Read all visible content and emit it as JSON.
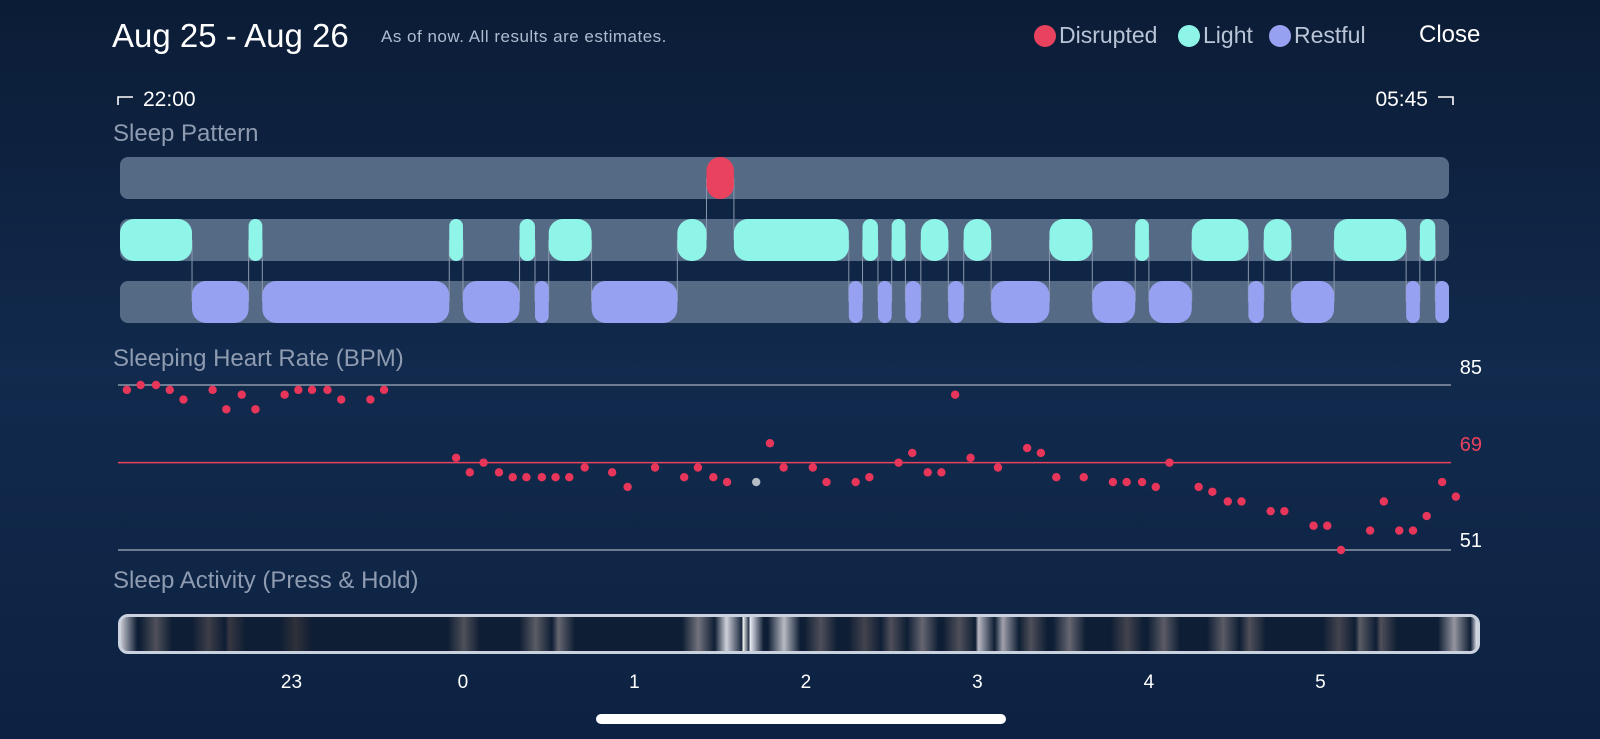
{
  "header": {
    "title": "Aug 25 - Aug 26",
    "subtitle": "As of now. All results are estimates.",
    "close_label": "Close"
  },
  "legend": [
    {
      "label": "Disrupted",
      "color": "#e8425e"
    },
    {
      "label": "Light",
      "color": "#8ff5e8"
    },
    {
      "label": "Restful",
      "color": "#97a1f2"
    }
  ],
  "time_range": {
    "start": "22:00",
    "end": "05:45"
  },
  "sleep_pattern": {
    "title": "Sleep Pattern",
    "track_color": "#556a85",
    "stages": [
      [
        "light",
        22.0,
        22.42
      ],
      [
        "restful",
        22.42,
        22.75
      ],
      [
        "light",
        22.75,
        22.83
      ],
      [
        "restful",
        22.83,
        23.92
      ],
      [
        "light",
        23.92,
        24.0
      ],
      [
        "restful",
        24.0,
        24.33
      ],
      [
        "light",
        24.33,
        24.42
      ],
      [
        "restful",
        24.42,
        24.5
      ],
      [
        "light",
        24.5,
        24.75
      ],
      [
        "restful",
        24.75,
        25.25
      ],
      [
        "light",
        25.25,
        25.42
      ],
      [
        "disrupted",
        25.42,
        25.58
      ],
      [
        "light",
        25.58,
        26.25
      ],
      [
        "restful",
        26.25,
        26.33
      ],
      [
        "light",
        26.33,
        26.42
      ],
      [
        "restful",
        26.42,
        26.5
      ],
      [
        "light",
        26.5,
        26.58
      ],
      [
        "restful",
        26.58,
        26.67
      ],
      [
        "light",
        26.67,
        26.83
      ],
      [
        "restful",
        26.83,
        26.92
      ],
      [
        "light",
        26.92,
        27.08
      ],
      [
        "restful",
        27.08,
        27.42
      ],
      [
        "light",
        27.42,
        27.67
      ],
      [
        "restful",
        27.67,
        27.92
      ],
      [
        "light",
        27.92,
        28.0
      ],
      [
        "restful",
        28.0,
        28.25
      ],
      [
        "light",
        28.25,
        28.58
      ],
      [
        "restful",
        28.58,
        28.67
      ],
      [
        "light",
        28.67,
        28.83
      ],
      [
        "restful",
        28.83,
        29.08
      ],
      [
        "light",
        29.08,
        29.5
      ],
      [
        "restful",
        29.5,
        29.58
      ],
      [
        "light",
        29.58,
        29.67
      ],
      [
        "restful",
        29.67,
        29.75
      ]
    ]
  },
  "heart_rate": {
    "title": "Sleeping Heart Rate (BPM)",
    "max_label": "85",
    "avg_label": "69",
    "min_label": "51",
    "avg_color": "#e8425e",
    "point_color": "#e8365a",
    "gray_point_color": "#b6bcc6"
  },
  "chart_data": {
    "type": "scatter",
    "title": "Sleeping Heart Rate (BPM)",
    "x_unit": "hours (clock)",
    "y_max": 85,
    "y_avg": 69,
    "y_min": 51,
    "xlim": [
      22.0,
      29.75
    ],
    "points": [
      [
        22.04,
        84
      ],
      [
        22.12,
        85
      ],
      [
        22.21,
        85
      ],
      [
        22.29,
        84
      ],
      [
        22.37,
        82
      ],
      [
        22.54,
        84
      ],
      [
        22.62,
        80
      ],
      [
        22.71,
        83
      ],
      [
        22.79,
        80
      ],
      [
        22.96,
        83
      ],
      [
        23.04,
        84
      ],
      [
        23.12,
        84
      ],
      [
        23.21,
        84
      ],
      [
        23.29,
        82
      ],
      [
        23.46,
        82
      ],
      [
        23.54,
        84
      ],
      [
        23.96,
        70
      ],
      [
        24.04,
        67
      ],
      [
        24.12,
        69
      ],
      [
        24.21,
        67
      ],
      [
        24.29,
        66
      ],
      [
        24.37,
        66
      ],
      [
        24.46,
        66
      ],
      [
        24.54,
        66
      ],
      [
        24.62,
        66
      ],
      [
        24.71,
        68
      ],
      [
        24.87,
        67
      ],
      [
        24.96,
        64
      ],
      [
        25.12,
        68
      ],
      [
        25.29,
        66
      ],
      [
        25.37,
        68
      ],
      [
        25.46,
        66
      ],
      [
        25.54,
        65
      ],
      [
        25.71,
        65,
        "gray"
      ],
      [
        25.79,
        73
      ],
      [
        25.87,
        68
      ],
      [
        26.04,
        68
      ],
      [
        26.12,
        65
      ],
      [
        26.29,
        65
      ],
      [
        26.37,
        66
      ],
      [
        26.54,
        69
      ],
      [
        26.62,
        71
      ],
      [
        26.71,
        67
      ],
      [
        26.79,
        67
      ],
      [
        26.87,
        83
      ],
      [
        26.96,
        70
      ],
      [
        27.12,
        68
      ],
      [
        27.29,
        72
      ],
      [
        27.37,
        71
      ],
      [
        27.46,
        66
      ],
      [
        27.62,
        66
      ],
      [
        27.79,
        65
      ],
      [
        27.87,
        65
      ],
      [
        27.96,
        65
      ],
      [
        28.04,
        64
      ],
      [
        28.12,
        69
      ],
      [
        28.29,
        64
      ],
      [
        28.37,
        63
      ],
      [
        28.46,
        61
      ],
      [
        28.54,
        61
      ],
      [
        28.71,
        59
      ],
      [
        28.79,
        59
      ],
      [
        28.96,
        56
      ],
      [
        29.04,
        56
      ],
      [
        29.12,
        51
      ],
      [
        29.29,
        55
      ],
      [
        29.37,
        61
      ],
      [
        29.46,
        55
      ],
      [
        29.54,
        55
      ],
      [
        29.62,
        58
      ],
      [
        29.71,
        65
      ],
      [
        29.79,
        62
      ]
    ]
  },
  "sleep_activity": {
    "title": "Sleep Activity (Press & Hold)",
    "bands": [
      [
        22.0,
        0.75
      ],
      [
        22.2,
        0.25
      ],
      [
        22.5,
        0.18
      ],
      [
        22.62,
        0.15
      ],
      [
        23.0,
        0.12
      ],
      [
        23.96,
        0.25
      ],
      [
        24.37,
        0.3
      ],
      [
        24.5,
        0.35
      ],
      [
        25.3,
        0.4
      ],
      [
        25.46,
        0.8
      ],
      [
        25.5,
        1.0
      ],
      [
        25.58,
        0.95
      ],
      [
        25.79,
        0.7
      ],
      [
        26.0,
        0.25
      ],
      [
        26.25,
        0.2
      ],
      [
        26.4,
        0.25
      ],
      [
        26.58,
        0.35
      ],
      [
        26.79,
        0.25
      ],
      [
        26.9,
        0.7
      ],
      [
        27.04,
        0.6
      ],
      [
        27.2,
        0.25
      ],
      [
        27.42,
        0.35
      ],
      [
        27.75,
        0.2
      ],
      [
        27.96,
        0.3
      ],
      [
        28.3,
        0.3
      ],
      [
        28.45,
        0.25
      ],
      [
        28.96,
        0.2
      ],
      [
        29.08,
        0.3
      ],
      [
        29.2,
        0.25
      ],
      [
        29.62,
        0.55
      ],
      [
        29.75,
        0.9
      ]
    ]
  },
  "x_axis": {
    "ticks": [
      {
        "label": "23",
        "value": 23
      },
      {
        "label": "0",
        "value": 24
      },
      {
        "label": "1",
        "value": 25
      },
      {
        "label": "2",
        "value": 26
      },
      {
        "label": "3",
        "value": 27
      },
      {
        "label": "4",
        "value": 28
      },
      {
        "label": "5",
        "value": 29
      }
    ]
  }
}
